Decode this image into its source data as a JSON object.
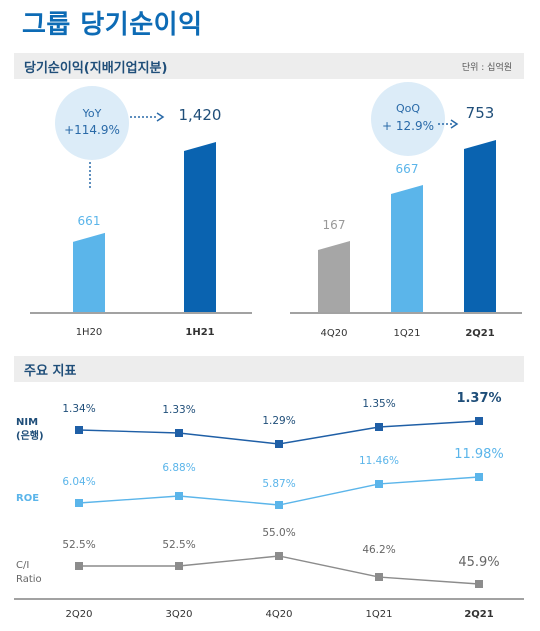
{
  "page": {
    "title": "그룹 당기순이익"
  },
  "section1": {
    "title": "당기순이익(지배기업지분)",
    "unit": "단위 : 십억원"
  },
  "section2": {
    "title": "주요 지표"
  },
  "colors": {
    "title": "#0d6bb5",
    "dark_blue": "#0a63b0",
    "light_blue": "#5bb5ea",
    "gray": "#a6a6a6",
    "bubble": "#dcecf8",
    "band": "#ededed"
  },
  "chart_data": [
    {
      "type": "bar",
      "categories": [
        "1H20",
        "1H21"
      ],
      "values": [
        661,
        1420
      ],
      "value_labels": [
        "661",
        "1,420"
      ],
      "bold_categories": [
        "1H21"
      ],
      "callout": {
        "name": "YoY",
        "value": "+114.9%"
      }
    },
    {
      "type": "bar",
      "categories": [
        "4Q20",
        "1Q21",
        "2Q21"
      ],
      "values": [
        167,
        667,
        753
      ],
      "value_labels": [
        "167",
        "667",
        "753"
      ],
      "bold_categories": [
        "2Q21"
      ],
      "callout": {
        "name": "QoQ",
        "value": "+ 12.9%"
      }
    },
    {
      "type": "line",
      "categories": [
        "2Q20",
        "3Q20",
        "4Q20",
        "1Q21",
        "2Q21"
      ],
      "bold_categories": [
        "2Q21"
      ],
      "series": [
        {
          "name": "NIM\n(은행)",
          "values": [
            1.34,
            1.33,
            1.29,
            1.35,
            1.37
          ],
          "labels": [
            "1.34%",
            "1.33%",
            "1.29%",
            "1.35%",
            "1.37%"
          ]
        },
        {
          "name": "ROE",
          "values": [
            6.04,
            6.88,
            5.87,
            11.46,
            11.98
          ],
          "labels": [
            "6.04%",
            "6.88%",
            "5.87%",
            "11.46%",
            "11.98%"
          ]
        },
        {
          "name": "C/I\nRatio",
          "values": [
            52.5,
            52.5,
            55.0,
            46.2,
            45.9
          ],
          "labels": [
            "52.5%",
            "52.5%",
            "55.0%",
            "46.2%",
            "45.9%"
          ]
        }
      ]
    }
  ]
}
